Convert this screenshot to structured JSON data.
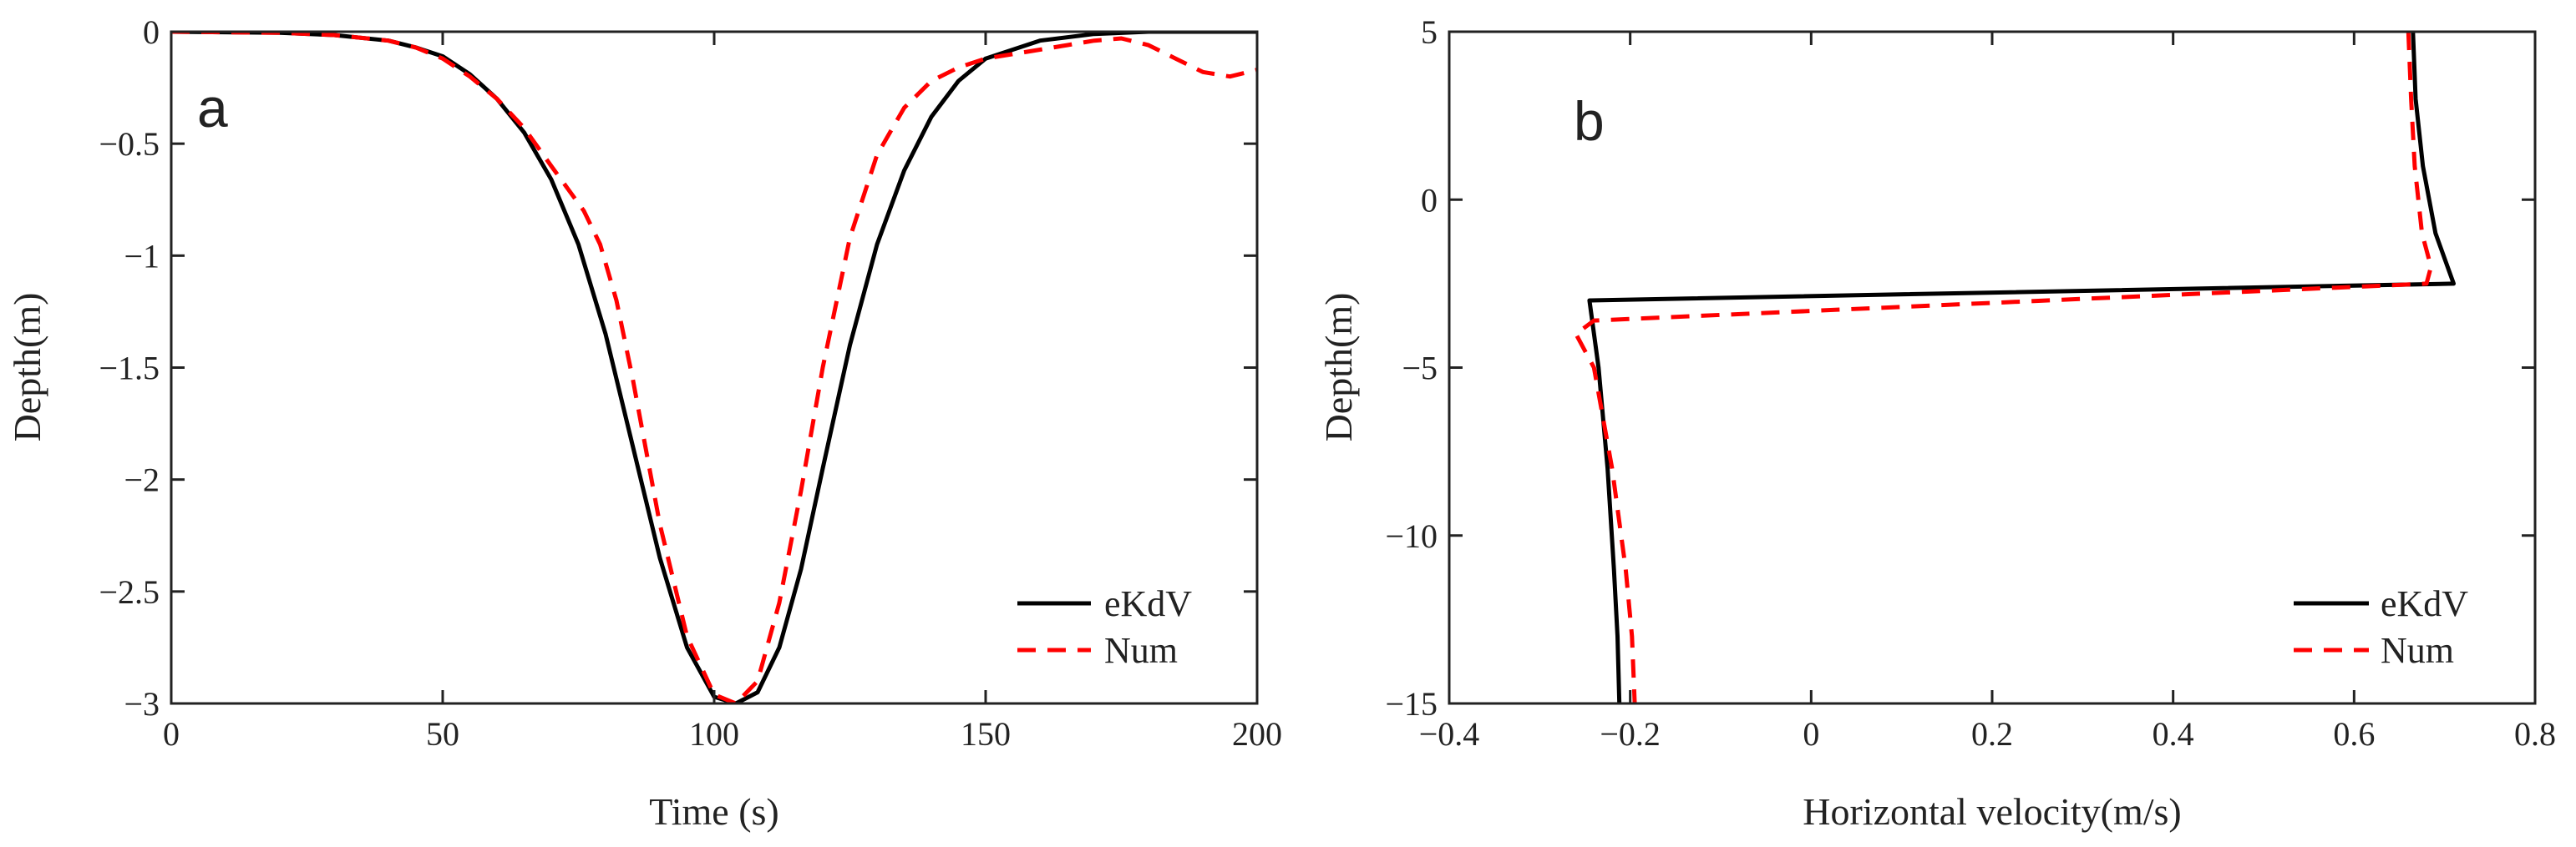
{
  "colors": {
    "axis": "#222222",
    "eKdV": "#000000",
    "Num": "#ff0000"
  },
  "chart_data": [
    {
      "type": "line",
      "panel": "a",
      "xlabel": "Time (s)",
      "ylabel": "Depth(m)",
      "xlim": [
        0,
        200
      ],
      "ylim": [
        -3,
        0
      ],
      "xticks": [
        0,
        50,
        100,
        150,
        200
      ],
      "xtick_labels": [
        "0",
        "50",
        "100",
        "150",
        "200"
      ],
      "yticks": [
        0,
        -0.5,
        -1,
        -1.5,
        -2,
        -2.5,
        -3
      ],
      "ytick_labels": [
        "0",
        "−0.5",
        "−1",
        "−1.5",
        "−2",
        "−2.5",
        "−3"
      ],
      "legend_position": "bottom-right",
      "series": [
        {
          "name": "eKdV",
          "style": "solid",
          "x": [
            0,
            20,
            30,
            40,
            45,
            50,
            55,
            60,
            65,
            70,
            75,
            80,
            85,
            90,
            95,
            100,
            104,
            108,
            112,
            116,
            120,
            125,
            130,
            135,
            140,
            145,
            150,
            160,
            170,
            180,
            190,
            200
          ],
          "y": [
            0,
            -0.005,
            -0.015,
            -0.04,
            -0.07,
            -0.11,
            -0.19,
            -0.3,
            -0.45,
            -0.66,
            -0.95,
            -1.35,
            -1.85,
            -2.35,
            -2.75,
            -2.97,
            -3.0,
            -2.95,
            -2.75,
            -2.4,
            -1.95,
            -1.4,
            -0.95,
            -0.62,
            -0.38,
            -0.22,
            -0.12,
            -0.04,
            -0.01,
            0,
            0,
            0
          ]
        },
        {
          "name": "Num",
          "style": "dashed",
          "x": [
            0,
            20,
            30,
            40,
            45,
            50,
            55,
            60,
            65,
            70,
            73,
            76,
            79,
            82,
            85,
            90,
            95,
            100,
            104,
            108,
            112,
            116,
            120,
            125,
            130,
            135,
            140,
            145,
            150,
            155,
            160,
            165,
            170,
            175,
            180,
            185,
            190,
            195,
            200
          ],
          "y": [
            0,
            -0.005,
            -0.015,
            -0.04,
            -0.07,
            -0.12,
            -0.2,
            -0.3,
            -0.43,
            -0.6,
            -0.7,
            -0.8,
            -0.95,
            -1.2,
            -1.55,
            -2.2,
            -2.7,
            -2.96,
            -3.0,
            -2.9,
            -2.55,
            -2.05,
            -1.5,
            -0.92,
            -0.55,
            -0.34,
            -0.22,
            -0.16,
            -0.12,
            -0.1,
            -0.08,
            -0.06,
            -0.04,
            -0.03,
            -0.06,
            -0.12,
            -0.18,
            -0.2,
            -0.17
          ]
        }
      ]
    },
    {
      "type": "line",
      "panel": "b",
      "xlabel": "Horizontal velocity(m/s)",
      "ylabel": "Depth(m)",
      "xlim": [
        -0.4,
        0.8
      ],
      "ylim": [
        -15,
        5
      ],
      "xticks": [
        -0.4,
        -0.2,
        0,
        0.2,
        0.4,
        0.6,
        0.8
      ],
      "xtick_labels": [
        "−0.4",
        "−0.2",
        "0",
        "0.2",
        "0.4",
        "0.6",
        "0.8"
      ],
      "yticks": [
        5,
        0,
        -5,
        -10,
        -15
      ],
      "ytick_labels": [
        "5",
        "0",
        "−5",
        "−10",
        "−15"
      ],
      "legend_position": "bottom-right",
      "series": [
        {
          "name": "eKdV",
          "style": "solid",
          "x": [
            0.665,
            0.668,
            0.676,
            0.69,
            0.71,
            -0.245,
            -0.235,
            -0.225,
            -0.218,
            -0.214,
            -0.212
          ],
          "y": [
            5,
            3,
            1,
            -1,
            -2.5,
            -3.0,
            -5,
            -8,
            -11,
            -13,
            -15
          ]
        },
        {
          "name": "Num",
          "style": "dashed",
          "x": [
            0.66,
            0.663,
            0.667,
            0.675,
            0.685,
            0.68,
            -0.24,
            -0.26,
            -0.24,
            -0.22,
            -0.205,
            -0.198,
            -0.195
          ],
          "y": [
            5,
            3,
            1,
            -1,
            -2,
            -2.5,
            -3.6,
            -4.0,
            -5,
            -8,
            -11,
            -13,
            -15
          ]
        }
      ]
    }
  ]
}
